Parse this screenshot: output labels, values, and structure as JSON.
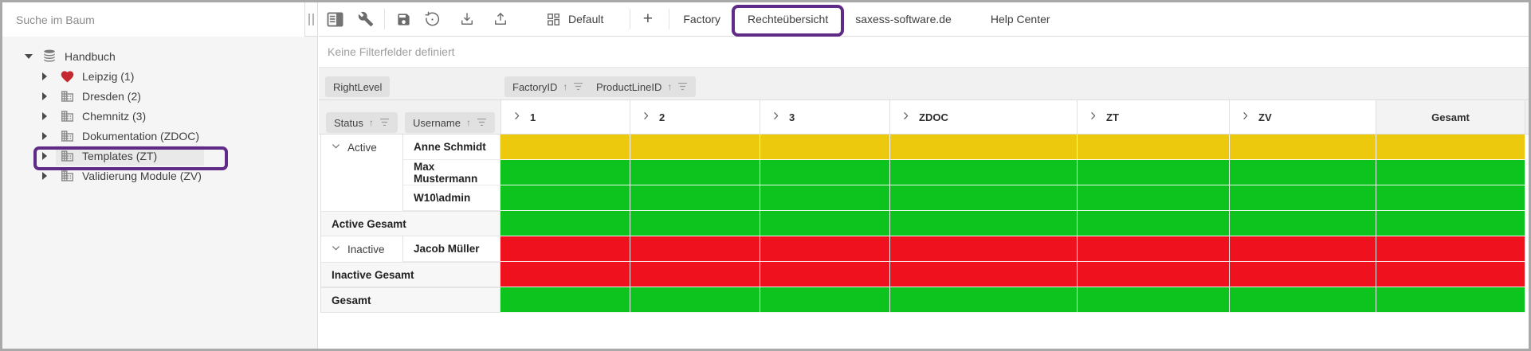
{
  "window": {
    "frame_color": "#a9a9a9"
  },
  "sidebar": {
    "search_placeholder": "Suche im Baum",
    "tree": [
      {
        "label": "Handbuch",
        "icon": "database",
        "level": 0,
        "expanded": true,
        "selected": false,
        "annotated": false
      },
      {
        "label": "Leipzig (1)",
        "icon": "heart",
        "level": 1,
        "expanded": false,
        "selected": false,
        "annotated": false
      },
      {
        "label": "Dresden (2)",
        "icon": "building",
        "level": 1,
        "expanded": false,
        "selected": false,
        "annotated": false
      },
      {
        "label": "Chemnitz (3)",
        "icon": "building",
        "level": 1,
        "expanded": false,
        "selected": false,
        "annotated": false
      },
      {
        "label": "Dokumentation (ZDOC)",
        "icon": "building",
        "level": 1,
        "expanded": false,
        "selected": false,
        "annotated": false
      },
      {
        "label": "Templates (ZT)",
        "icon": "building",
        "level": 1,
        "expanded": false,
        "selected": true,
        "annotated": true
      },
      {
        "label": "Validierung Module (ZV)",
        "icon": "building",
        "level": 1,
        "expanded": false,
        "selected": false,
        "annotated": false
      }
    ]
  },
  "toolbar": {
    "icons": [
      "panel-toggle",
      "wrench",
      "save",
      "history",
      "download",
      "upload"
    ],
    "layout_label": "Default",
    "add_label": "+",
    "tabs": [
      {
        "label": "Factory",
        "active": false,
        "annotated": false
      },
      {
        "label": "Rechteübersicht",
        "active": true,
        "annotated": true
      },
      {
        "label": "saxess-software.de",
        "active": false,
        "annotated": false
      },
      {
        "label": "Help Center",
        "active": false,
        "annotated": false
      }
    ]
  },
  "pivot": {
    "filter_placeholder": "Keine Filterfelder definiert",
    "data_field": "RightLevel",
    "column_fields": [
      "FactoryID",
      "ProductLineID"
    ],
    "row_fields": [
      "Status",
      "Username"
    ],
    "columns": [
      "1",
      "2",
      "3",
      "ZDOC",
      "ZT",
      "ZV"
    ],
    "column_total_label": "Gesamt",
    "rows": [
      {
        "status": "Active",
        "username": "Anne Schmidt",
        "color": "yellow"
      },
      {
        "username": "Max Mustermann",
        "color": "green"
      },
      {
        "username": "W10\\admin",
        "color": "green"
      },
      {
        "label": "Active Gesamt",
        "type": "total",
        "color": "green"
      },
      {
        "status": "Inactive",
        "username": "Jacob Müller",
        "color": "red"
      },
      {
        "label": "Inactive Gesamt",
        "type": "total",
        "color": "red"
      },
      {
        "label": "Gesamt",
        "type": "grand-total",
        "color": "green"
      }
    ],
    "cell_colors": {
      "yellow": "#edc90e",
      "green": "#0cc41d",
      "red": "#f0111f"
    }
  },
  "annotation": {
    "color": "#5f2b87",
    "active_tab_underline": "#eaa43b"
  }
}
